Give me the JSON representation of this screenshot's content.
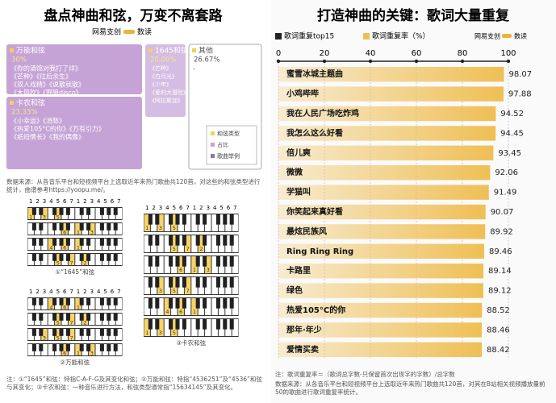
{
  "left": {
    "title": "盘点神曲和弦，万变不离套路",
    "brand": "网易支创",
    "column": "数读",
    "treemap": [
      {
        "name": "万能和弦",
        "share": "30%",
        "songs": [
          "《你的酒馆对我打了烊》",
          "《芒种》《往后余生》",
          "《双人戏精》《说散就散》",
          "《大风吹》《野狼disco》"
        ]
      },
      {
        "name": "1645和弦",
        "share": "20.00%",
        "songs": [
          "《芒种》",
          "《白月光》",
          "《少年》",
          "《爱的大冒险》",
          "《阿拉斯加》"
        ]
      },
      {
        "name": "其他",
        "share": "26.67%",
        "songs": [
          "-"
        ]
      },
      {
        "name": "卡农和弦",
        "share": "23.33%",
        "songs": [
          "《小幸运》《消愁》",
          "《热爱105°C的你》《万有引力》",
          "《纸短情长》《我的偶像》"
        ]
      }
    ],
    "legend": [
      "和弦类型",
      "占比",
      "歌曲举例"
    ],
    "source": "数据来源：从各音乐平台和短视频平台上选取近年来热门歌曲共120首，对这些的和弦类型进行统计，曲谱参考https://yoopu.me/。",
    "scale": [
      "1",
      "2",
      "3",
      "4",
      "5",
      "6",
      "7"
    ],
    "diagrams": [
      {
        "caption": "①“1645”和弦",
        "rows": [
          [
            "1",
            "3",
            "5"
          ],
          [
            "6",
            "1",
            "3"
          ],
          [
            "4",
            "6",
            "1"
          ],
          [
            "5",
            "7",
            "2"
          ]
        ]
      },
      {
        "caption": "②万能和弦",
        "rows": [
          [
            "4",
            "6",
            "1"
          ],
          [
            "5",
            "7",
            "2"
          ],
          [
            "3",
            "5",
            "7"
          ],
          [
            "6",
            "1",
            "3"
          ]
        ]
      },
      {
        "caption": "③卡农和弦",
        "rows": [
          [
            "1",
            "3",
            "5"
          ],
          [
            "5",
            "7",
            "2"
          ],
          [
            "6",
            "1",
            "3"
          ],
          [
            "3",
            "5",
            "7"
          ],
          [
            "4",
            "6",
            "1"
          ],
          [
            "1",
            "3",
            "5"
          ]
        ]
      }
    ],
    "note": "注：①“1645”和弦：特指C-A-F-G及其变化和弦；②万能和弦：特指“4536251”及“4536”和弦与其变化；③卡农和弦：一种音乐进行方法，和弦类型通常指“15634145”及其变化。"
  },
  "chart_data": {
    "type": "bar",
    "orientation": "horizontal",
    "title": "打造神曲的关键：歌词大量重复",
    "brand": "网易支创",
    "column": "数读",
    "legend_title": "歌词重复top15",
    "categories": [
      "蜜雪冰城主题曲",
      "小鸡哔哔",
      "我在人民广场吃炸鸡",
      "我怎么这么好看",
      "倍儿爽",
      "微微",
      "学猫叫",
      "你笑起来真好看",
      "最炫民族风",
      "Ring Ring Ring",
      "卡路里",
      "绿色",
      "热爱105°C的你",
      "那年·年少",
      "爱情买卖"
    ],
    "series": [
      {
        "name": "歌词重复率（%）",
        "color": "#efbf55",
        "values": [
          98.07,
          97.88,
          94.52,
          94.45,
          93.45,
          92.06,
          91.49,
          90.07,
          89.92,
          89.46,
          89.14,
          89.12,
          88.52,
          88.46,
          88.42
        ]
      }
    ],
    "xlim": [
      0,
      100
    ],
    "xticks": [
      0,
      20,
      40,
      60,
      80,
      100
    ],
    "grid": true,
    "note": "注：歌词重复率＝（歌词总字数-只保留首次出现字的字数）/总字数",
    "source": "数据来源：从各音乐平台和短视频平台上选取近年来热门歌曲共120首，对其在B站相关视频播放量前50的歌曲进行歌词重复率统计。"
  }
}
